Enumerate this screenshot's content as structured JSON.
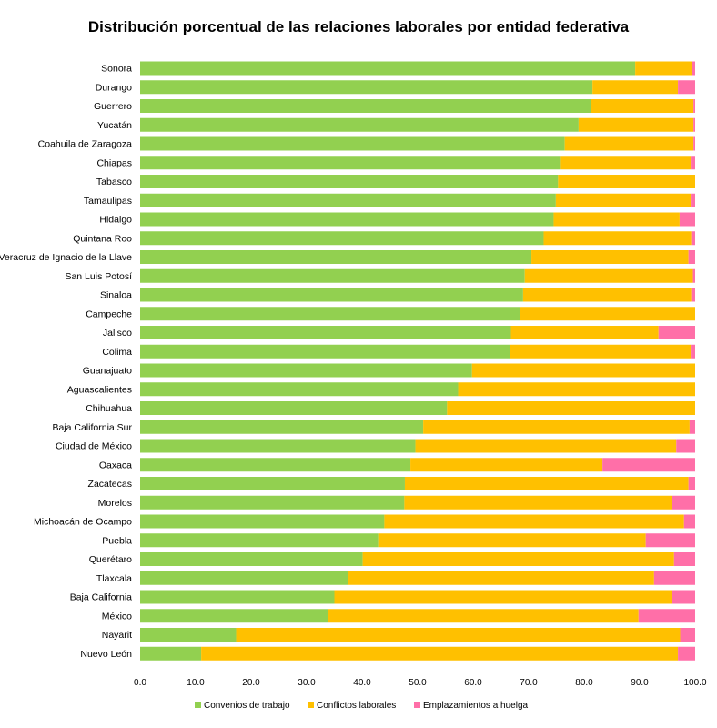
{
  "chart_data": {
    "type": "bar",
    "orientation": "horizontal",
    "stacked": true,
    "title": "Distribución porcentual de las relaciones laborales por entidad federativa",
    "categories": [
      "Sonora",
      "Durango",
      "Guerrero",
      "Yucatán",
      "Coahuila de Zaragoza",
      "Chiapas",
      "Tabasco",
      "Tamaulipas",
      "Hidalgo",
      "Quintana Roo",
      "Veracruz de Ignacio de la Llave",
      "San Luis Potosí",
      "Sinaloa",
      "Campeche",
      "Jalisco",
      "Colima",
      "Guanajuato",
      "Aguascalientes",
      "Chihuahua",
      "Baja California Sur",
      "Ciudad de México",
      "Oaxaca",
      "Zacatecas",
      "Morelos",
      "Michoacán de Ocampo",
      "Puebla",
      "Querétaro",
      "Tlaxcala",
      "Baja California",
      "México",
      "Nayarit",
      "Nuevo León"
    ],
    "series": [
      {
        "name": "Convenios de trabajo",
        "color": "#92d050",
        "values": [
          89.2,
          81.5,
          81.3,
          79.0,
          76.5,
          75.8,
          75.3,
          74.9,
          74.5,
          72.7,
          70.5,
          69.3,
          69.0,
          68.5,
          66.8,
          66.7,
          59.8,
          57.3,
          55.3,
          51.0,
          49.6,
          48.7,
          47.7,
          47.6,
          44.0,
          42.9,
          40.1,
          37.5,
          35.0,
          33.8,
          17.3,
          11.0
        ]
      },
      {
        "name": "Conflictos laborales",
        "color": "#ffc000",
        "values": [
          10.2,
          15.4,
          18.4,
          20.7,
          23.2,
          23.4,
          24.7,
          24.3,
          22.7,
          26.6,
          28.3,
          30.3,
          30.3,
          31.5,
          26.6,
          32.5,
          40.2,
          42.7,
          44.7,
          48.0,
          47.0,
          34.6,
          51.1,
          48.2,
          54.0,
          48.2,
          56.1,
          55.1,
          60.9,
          56.0,
          80.0,
          85.9
        ]
      },
      {
        "name": "Emplazamientos a huelga",
        "color": "#ff6fa8",
        "values": [
          0.6,
          3.1,
          0.3,
          0.3,
          0.3,
          0.8,
          0.0,
          0.8,
          2.8,
          0.7,
          1.2,
          0.4,
          0.7,
          0.0,
          6.6,
          0.8,
          0.0,
          0.0,
          0.0,
          1.0,
          3.4,
          16.7,
          1.2,
          4.2,
          2.0,
          8.9,
          3.8,
          7.4,
          4.1,
          10.2,
          2.7,
          3.1
        ]
      }
    ],
    "xlim": [
      0,
      100
    ],
    "xticks": [
      "0.0",
      "10.0",
      "20.0",
      "30.0",
      "40.0",
      "50.0",
      "60.0",
      "70.0",
      "80.0",
      "90.0",
      "100.0"
    ],
    "legend_position": "bottom",
    "grid": false
  }
}
